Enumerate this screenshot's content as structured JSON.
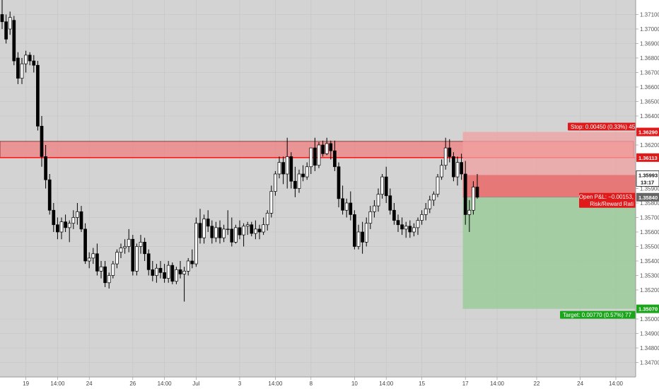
{
  "chart_data": {
    "type": "candlestick",
    "ylim": [
      1.346,
      1.372
    ],
    "y_ticks": [
      "1.37100",
      "1.37000",
      "1.36900",
      "1.36800",
      "1.36700",
      "1.36600",
      "1.36500",
      "1.36400",
      "1.36200",
      "1.35900",
      "1.35800",
      "1.35700",
      "1.35600",
      "1.35500",
      "1.35400",
      "1.35300",
      "1.35200",
      "1.35000",
      "1.34900",
      "1.34800",
      "1.34700"
    ],
    "y_tick_values": [
      1.371,
      1.37,
      1.369,
      1.368,
      1.367,
      1.366,
      1.365,
      1.364,
      1.362,
      1.359,
      1.358,
      1.357,
      1.356,
      1.355,
      1.354,
      1.353,
      1.352,
      1.35,
      1.349,
      1.348,
      1.347
    ],
    "x_ticks": [
      {
        "label": "19",
        "bar": 6
      },
      {
        "label": "14:00",
        "bar": 14
      },
      {
        "label": "24",
        "bar": 22
      },
      {
        "label": "26",
        "bar": 33
      },
      {
        "label": "14:00",
        "bar": 41
      },
      {
        "label": "Jul",
        "bar": 49
      },
      {
        "label": "3",
        "bar": 60
      },
      {
        "label": "14:00",
        "bar": 69
      },
      {
        "label": "8",
        "bar": 78
      },
      {
        "label": "10",
        "bar": 89
      },
      {
        "label": "14:00",
        "bar": 97
      },
      {
        "label": "15",
        "bar": 106
      },
      {
        "label": "17",
        "bar": 117
      },
      {
        "label": "14:00",
        "bar": 125
      },
      {
        "label": "22",
        "bar": 135
      },
      {
        "label": "24",
        "bar": 146
      },
      {
        "label": "14:00",
        "bar": 155
      }
    ],
    "resistance_zone": {
      "top": 1.36225,
      "bottom": 1.36113,
      "label": "1.36113"
    },
    "candles": [
      [
        1.371,
        1.3725,
        1.37,
        1.3705
      ],
      [
        1.3705,
        1.371,
        1.369,
        1.3693
      ],
      [
        1.37,
        1.3712,
        1.3696,
        1.3708
      ],
      [
        1.3706,
        1.3709,
        1.3675,
        1.3678
      ],
      [
        1.368,
        1.3684,
        1.3662,
        1.3666
      ],
      [
        1.3666,
        1.368,
        1.3662,
        1.3676
      ],
      [
        1.3676,
        1.3685,
        1.367,
        1.3682
      ],
      [
        1.3682,
        1.3684,
        1.3675,
        1.3678
      ],
      [
        1.3678,
        1.3682,
        1.367,
        1.3675
      ],
      [
        1.3675,
        1.3678,
        1.363,
        1.3633
      ],
      [
        1.3633,
        1.364,
        1.3605,
        1.3612
      ],
      [
        1.3612,
        1.362,
        1.359,
        1.3596
      ],
      [
        1.3596,
        1.36,
        1.3572,
        1.3575
      ],
      [
        1.3575,
        1.358,
        1.356,
        1.3565
      ],
      [
        1.3565,
        1.357,
        1.3555,
        1.356
      ],
      [
        1.356,
        1.357,
        1.3555,
        1.3567
      ],
      [
        1.3567,
        1.3572,
        1.356,
        1.3563
      ],
      [
        1.3563,
        1.3568,
        1.3553,
        1.3566
      ],
      [
        1.3566,
        1.3575,
        1.3562,
        1.357
      ],
      [
        1.357,
        1.358,
        1.3565,
        1.3574
      ],
      [
        1.3574,
        1.3578,
        1.356,
        1.3562
      ],
      [
        1.3562,
        1.3566,
        1.3538,
        1.354
      ],
      [
        1.354,
        1.3546,
        1.3535,
        1.3542
      ],
      [
        1.3542,
        1.3549,
        1.3538,
        1.3545
      ],
      [
        1.3545,
        1.3552,
        1.353,
        1.3533
      ],
      [
        1.3533,
        1.354,
        1.3528,
        1.3536
      ],
      [
        1.3536,
        1.354,
        1.3522,
        1.3525
      ],
      [
        1.3525,
        1.3532,
        1.3521,
        1.353
      ],
      [
        1.353,
        1.354,
        1.3528,
        1.3538
      ],
      [
        1.3538,
        1.3548,
        1.3535,
        1.3546
      ],
      [
        1.3546,
        1.3552,
        1.3542,
        1.3549
      ],
      [
        1.3549,
        1.3555,
        1.3545,
        1.355
      ],
      [
        1.355,
        1.3562,
        1.3546,
        1.3555
      ],
      [
        1.3555,
        1.3558,
        1.353,
        1.3533
      ],
      [
        1.3533,
        1.3552,
        1.353,
        1.355
      ],
      [
        1.355,
        1.3558,
        1.3545,
        1.3553
      ],
      [
        1.3553,
        1.3556,
        1.354,
        1.3545
      ],
      [
        1.3545,
        1.3548,
        1.353,
        1.3534
      ],
      [
        1.3534,
        1.354,
        1.3526,
        1.353
      ],
      [
        1.353,
        1.3538,
        1.3525,
        1.3535
      ],
      [
        1.3535,
        1.354,
        1.3528,
        1.3532
      ],
      [
        1.3532,
        1.3538,
        1.3525,
        1.3528
      ],
      [
        1.3528,
        1.354,
        1.3525,
        1.3537
      ],
      [
        1.3537,
        1.3539,
        1.3524,
        1.3526
      ],
      [
        1.3526,
        1.3536,
        1.3524,
        1.3534
      ],
      [
        1.3534,
        1.354,
        1.3528,
        1.3531
      ],
      [
        1.3531,
        1.3536,
        1.3512,
        1.3533
      ],
      [
        1.3533,
        1.3542,
        1.353,
        1.354
      ],
      [
        1.354,
        1.3548,
        1.3535,
        1.3538
      ],
      [
        1.3538,
        1.357,
        1.3536,
        1.3566
      ],
      [
        1.3566,
        1.3576,
        1.3552,
        1.3556
      ],
      [
        1.3556,
        1.3572,
        1.3552,
        1.3569
      ],
      [
        1.3569,
        1.3575,
        1.356,
        1.3564
      ],
      [
        1.3564,
        1.3568,
        1.3552,
        1.3556
      ],
      [
        1.3556,
        1.3567,
        1.3553,
        1.3563
      ],
      [
        1.3563,
        1.3568,
        1.3552,
        1.3556
      ],
      [
        1.3556,
        1.3565,
        1.3553,
        1.3562
      ],
      [
        1.3562,
        1.3575,
        1.3558,
        1.3562
      ],
      [
        1.3562,
        1.357,
        1.355,
        1.3553
      ],
      [
        1.3553,
        1.3565,
        1.3552,
        1.3563
      ],
      [
        1.3563,
        1.3568,
        1.3555,
        1.3558
      ],
      [
        1.3558,
        1.3566,
        1.355,
        1.3564
      ],
      [
        1.3564,
        1.3567,
        1.3558,
        1.3565
      ],
      [
        1.3565,
        1.3567,
        1.3557,
        1.3559
      ],
      [
        1.3559,
        1.3568,
        1.3555,
        1.3562
      ],
      [
        1.3562,
        1.3565,
        1.3555,
        1.356
      ],
      [
        1.356,
        1.357,
        1.3558,
        1.3565
      ],
      [
        1.3565,
        1.3575,
        1.3561,
        1.3573
      ],
      [
        1.3573,
        1.3592,
        1.357,
        1.3588
      ],
      [
        1.3588,
        1.3602,
        1.3585,
        1.36
      ],
      [
        1.36,
        1.3612,
        1.3597,
        1.3608
      ],
      [
        1.3608,
        1.3612,
        1.3593,
        1.36
      ],
      [
        1.36,
        1.3625,
        1.359,
        1.3612
      ],
      [
        1.3612,
        1.3615,
        1.359,
        1.3595
      ],
      [
        1.3595,
        1.3605,
        1.3584,
        1.359
      ],
      [
        1.359,
        1.3603,
        1.3587,
        1.36
      ],
      [
        1.36,
        1.3606,
        1.3595,
        1.3598
      ],
      [
        1.3598,
        1.3608,
        1.3596,
        1.3605
      ],
      [
        1.3605,
        1.3618,
        1.36,
        1.3618
      ],
      [
        1.3618,
        1.3625,
        1.3602,
        1.3606
      ],
      [
        1.3606,
        1.3622,
        1.3604,
        1.362
      ],
      [
        1.362,
        1.3623,
        1.3612,
        1.3614
      ],
      [
        1.3614,
        1.3625,
        1.3613,
        1.3621
      ],
      [
        1.3621,
        1.3623,
        1.361,
        1.3616
      ],
      [
        1.3616,
        1.3623,
        1.3602,
        1.3605
      ],
      [
        1.3605,
        1.3608,
        1.3577,
        1.3583
      ],
      [
        1.3583,
        1.3592,
        1.3572,
        1.3575
      ],
      [
        1.3575,
        1.3583,
        1.357,
        1.358
      ],
      [
        1.358,
        1.3588,
        1.3568,
        1.3572
      ],
      [
        1.3572,
        1.3575,
        1.3548,
        1.355
      ],
      [
        1.355,
        1.3565,
        1.3548,
        1.356
      ],
      [
        1.356,
        1.3567,
        1.3545,
        1.3553
      ],
      [
        1.3553,
        1.357,
        1.355,
        1.3566
      ],
      [
        1.3566,
        1.3578,
        1.3562,
        1.3574
      ],
      [
        1.3574,
        1.3582,
        1.357,
        1.3578
      ],
      [
        1.3578,
        1.359,
        1.3574,
        1.3586
      ],
      [
        1.3586,
        1.36,
        1.3583,
        1.3598
      ],
      [
        1.3598,
        1.3605,
        1.358,
        1.3585
      ],
      [
        1.3585,
        1.359,
        1.3572,
        1.3575
      ],
      [
        1.3575,
        1.358,
        1.3565,
        1.3568
      ],
      [
        1.3568,
        1.3572,
        1.356,
        1.3565
      ],
      [
        1.3565,
        1.357,
        1.3558,
        1.3562
      ],
      [
        1.3562,
        1.3567,
        1.3556,
        1.3564
      ],
      [
        1.3564,
        1.3568,
        1.3556,
        1.356
      ],
      [
        1.356,
        1.3566,
        1.3557,
        1.3563
      ],
      [
        1.3563,
        1.357,
        1.3558,
        1.3568
      ],
      [
        1.3568,
        1.3575,
        1.3565,
        1.3572
      ],
      [
        1.3572,
        1.358,
        1.3568,
        1.3576
      ],
      [
        1.3576,
        1.3585,
        1.3573,
        1.3582
      ],
      [
        1.3582,
        1.3588,
        1.3578,
        1.3586
      ],
      [
        1.3586,
        1.36,
        1.3584,
        1.3598
      ],
      [
        1.3598,
        1.361,
        1.3596,
        1.3606
      ],
      [
        1.3606,
        1.3625,
        1.3603,
        1.3618
      ],
      [
        1.3618,
        1.3624,
        1.3608,
        1.3612
      ],
      [
        1.3612,
        1.3615,
        1.3595,
        1.3598
      ],
      [
        1.3598,
        1.3612,
        1.3592,
        1.3608
      ],
      [
        1.3608,
        1.3614,
        1.3596,
        1.36
      ],
      [
        1.36,
        1.3609,
        1.3565,
        1.3572
      ],
      [
        1.3572,
        1.3582,
        1.356,
        1.3575
      ],
      [
        1.3575,
        1.3595,
        1.3572,
        1.3591
      ],
      [
        1.3591,
        1.36,
        1.3583,
        1.3584
      ]
    ],
    "position": {
      "entry": 1.3584,
      "stop": 1.3629,
      "target": 1.3507,
      "current": 1.35993,
      "start_bar": 116,
      "end_bar": 153
    },
    "labels": {
      "stop": "Stop: 0.00450 (0.33%) 45",
      "pnl": "Open P&L: −0.00153,",
      "rr": "Risk/Reward Rati",
      "target": "Target: 0.00770 (0.57%) 77",
      "price_stop": "1.36290",
      "price_zone": "1.36113",
      "price_current": "1.35993",
      "countdown": "13:17",
      "price_entry": "1.35840",
      "price_target": "1.35070"
    }
  }
}
